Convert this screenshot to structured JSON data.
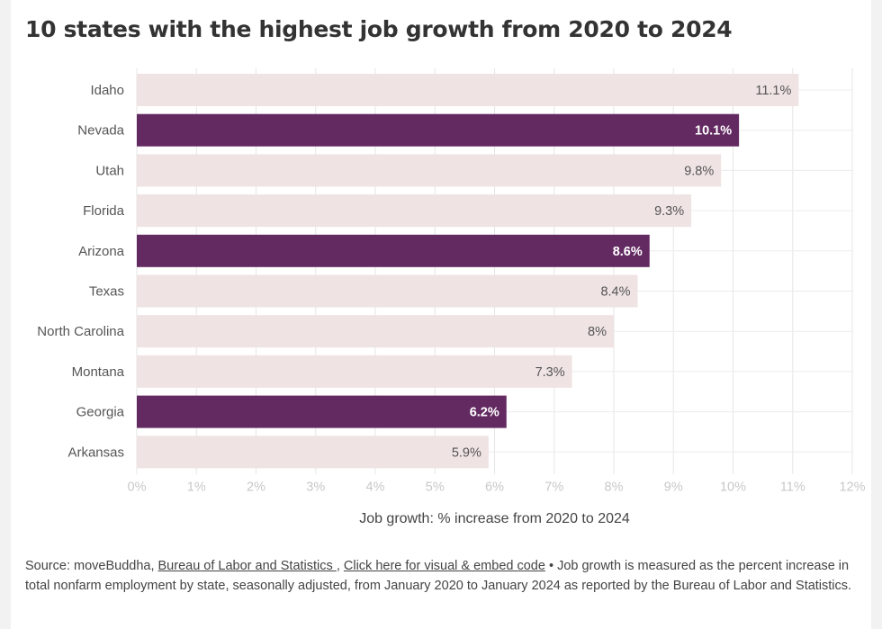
{
  "chart_data": {
    "type": "bar",
    "orientation": "horizontal",
    "title": "10 states with the highest job growth from 2020 to 2024",
    "categories": [
      "Idaho",
      "Nevada",
      "Utah",
      "Florida",
      "Arizona",
      "Texas",
      "North Carolina",
      "Montana",
      "Georgia",
      "Arkansas"
    ],
    "values": [
      11.1,
      10.1,
      9.8,
      9.3,
      8.6,
      8.4,
      8,
      7.3,
      6.2,
      5.9
    ],
    "value_labels": [
      "11.1%",
      "10.1%",
      "9.8%",
      "9.3%",
      "8.6%",
      "8.4%",
      "8%",
      "7.3%",
      "6.2%",
      "5.9%"
    ],
    "highlighted": [
      false,
      true,
      false,
      false,
      true,
      false,
      false,
      false,
      true,
      false
    ],
    "xlabel": "Job growth: % increase from 2020 to 2024",
    "ylabel": "",
    "xlim": [
      0,
      12
    ],
    "xticks": [
      "0%",
      "1%",
      "2%",
      "3%",
      "4%",
      "5%",
      "6%",
      "7%",
      "8%",
      "9%",
      "10%",
      "11%",
      "12%"
    ],
    "grid": true
  },
  "colors": {
    "highlight": "#632a62",
    "base": "#efe3e3",
    "label_dark": "#555555",
    "label_light": "#ffffff",
    "axis_text": "#c8c8c8",
    "category_text": "#555555"
  },
  "footer": {
    "source_prefix": "Source: moveBuddha,",
    "source_link": "Bureau of Labor and Statistics ",
    "separator": ",",
    "embed_link": "Click here for visual & embed code",
    "note": "• Job growth is measured as the percent increase in total nonfarm employment by state, seasonally adjusted, from January 2020 to January 2024 as reported by the Bureau of Labor and Statistics."
  }
}
